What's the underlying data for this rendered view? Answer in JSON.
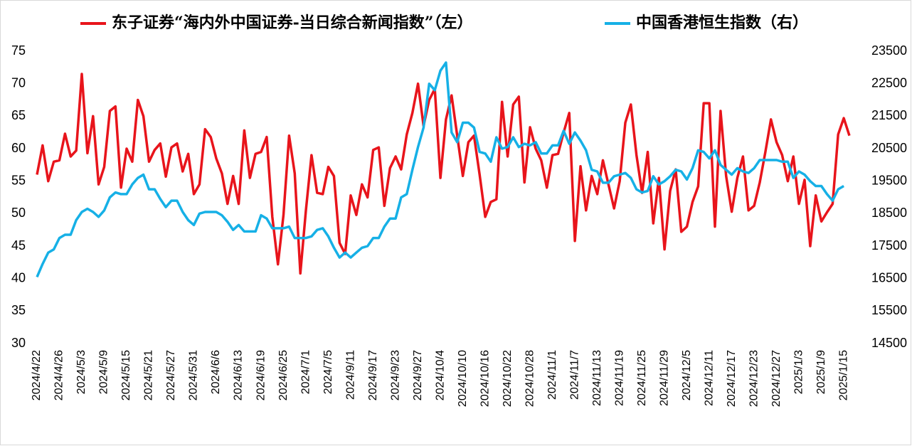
{
  "chart_data": {
    "type": "line",
    "legend": "top",
    "grid": false,
    "categories": [
      "2024/4/22",
      null,
      null,
      null,
      "2024/4/26",
      null,
      null,
      null,
      "2024/5/3",
      null,
      null,
      null,
      "2024/5/9",
      null,
      null,
      null,
      "2024/5/15",
      null,
      null,
      null,
      "2024/5/21",
      null,
      null,
      null,
      "2024/5/27",
      null,
      null,
      null,
      "2024/5/31",
      null,
      null,
      null,
      "2024/6/6",
      null,
      null,
      null,
      "2024/6/13",
      null,
      null,
      null,
      "2024/6/19",
      null,
      null,
      null,
      "2024/6/25",
      null,
      null,
      null,
      "2024/7/1",
      null,
      null,
      null,
      "2024/7/5",
      null,
      null,
      null,
      "2024/9/11",
      null,
      null,
      null,
      "2024/9/17",
      null,
      null,
      null,
      "2024/9/23",
      null,
      null,
      null,
      "2024/9/27",
      null,
      null,
      null,
      "2024/10/4",
      null,
      null,
      null,
      "2024/10/10",
      null,
      null,
      null,
      "2024/10/16",
      null,
      null,
      null,
      "2024/10/22",
      null,
      null,
      null,
      "2024/10/28",
      null,
      null,
      null,
      "2024/11/1",
      null,
      null,
      null,
      "2024/11/7",
      null,
      null,
      null,
      "2024/11/13",
      null,
      null,
      null,
      "2024/11/19",
      null,
      null,
      null,
      "2024/11/25",
      null,
      null,
      null,
      "2024/11/29",
      null,
      null,
      null,
      "2024/12/5",
      null,
      null,
      null,
      "2024/12/11",
      null,
      null,
      null,
      "2024/12/17",
      null,
      null,
      null,
      "2024/12/23",
      null,
      null,
      null,
      "2024/12/27",
      null,
      null,
      null,
      "2025/1/3",
      null,
      null,
      null,
      "2025/1/9",
      null,
      null,
      null,
      "2025/1/15",
      null
    ],
    "ylim": [
      30,
      75
    ],
    "yticks": [
      30,
      35,
      40,
      45,
      50,
      55,
      60,
      65,
      70,
      75
    ],
    "y2lim": [
      14500,
      23500
    ],
    "y2ticks": [
      14500,
      15500,
      16500,
      17500,
      18500,
      19500,
      20500,
      21500,
      22500,
      23500
    ],
    "series": [
      {
        "name": "东子证券“海内外中国证券-当日综合新闻指数”（左）",
        "color": "#e8141b",
        "axis": "y",
        "values": [
          56,
          60.5,
          55,
          58,
          58.2,
          62.3,
          58.8,
          59.7,
          71.5,
          59.3,
          65,
          54.5,
          57.2,
          65.8,
          66.5,
          54,
          60,
          58,
          67.5,
          65,
          58,
          59.8,
          60.8,
          55.7,
          60.2,
          60.8,
          56.5,
          59.2,
          53,
          54.5,
          63,
          61.8,
          58.5,
          56.2,
          51.5,
          55.8,
          51.5,
          62.8,
          55.5,
          59.2,
          59.5,
          61.8,
          49.5,
          42.2,
          49.8,
          62,
          56.2,
          40.8,
          50.5,
          59,
          53.2,
          53,
          57.2,
          55.8,
          45.5,
          43.8,
          52.8,
          49.8,
          54.5,
          52.5,
          59.8,
          60.2,
          51.2,
          57,
          58.8,
          56.8,
          62.2,
          65.5,
          70,
          63.5,
          67.5,
          69.2,
          55.5,
          64.5,
          68.2,
          62,
          55.8,
          61,
          62,
          56,
          49.5,
          51.8,
          52.2,
          67.2,
          58.8,
          66.8,
          68,
          54.8,
          63.3,
          60,
          58.2,
          54,
          59,
          59.2,
          62.5,
          65.5,
          45.8,
          57.3,
          50.5,
          55.8,
          53,
          58.2,
          54.5,
          50.8,
          55,
          64,
          66.8,
          59,
          53.2,
          59.5,
          48.5,
          55.5,
          44.5,
          53.5,
          56.8,
          47.2,
          48,
          51.8,
          54.2,
          67,
          67,
          48,
          65.8,
          55.8,
          50.3,
          55.5,
          58.8,
          50.5,
          51.2,
          54.8,
          59.5,
          64.5,
          61,
          59,
          55,
          58.8,
          51.5,
          55.2,
          45,
          52.8,
          48.8,
          50.2,
          51.5,
          62.2,
          64.7,
          62
        ]
      },
      {
        "name": "中国香港恒生指数（右）",
        "color": "#16b0e6",
        "axis": "y2",
        "values": [
          16550,
          16950,
          17300,
          17400,
          17750,
          17850,
          17850,
          18300,
          18550,
          18650,
          18550,
          18400,
          18600,
          19000,
          19150,
          19100,
          19100,
          19400,
          19600,
          19700,
          19250,
          19250,
          18950,
          18700,
          18900,
          18900,
          18550,
          18300,
          18150,
          18500,
          18550,
          18550,
          18550,
          18450,
          18250,
          18000,
          18150,
          17950,
          17950,
          17950,
          18450,
          18350,
          18050,
          18050,
          18050,
          18100,
          17750,
          17750,
          17750,
          17800,
          18000,
          18050,
          17800,
          17450,
          17150,
          17300,
          17150,
          17300,
          17450,
          17500,
          17750,
          17750,
          18100,
          18350,
          18350,
          19000,
          19100,
          19850,
          20550,
          21150,
          22500,
          22300,
          22900,
          23150,
          21000,
          20700,
          21300,
          21300,
          21150,
          20400,
          20350,
          20100,
          20850,
          20500,
          20550,
          20850,
          20550,
          20650,
          20600,
          20700,
          20350,
          20350,
          20600,
          20600,
          21050,
          20650,
          21000,
          20750,
          20450,
          19850,
          19800,
          19450,
          19450,
          19650,
          19700,
          19750,
          19600,
          19250,
          19150,
          19200,
          19650,
          19400,
          19500,
          19650,
          19850,
          19800,
          19550,
          19900,
          20450,
          20400,
          20200,
          20450,
          20000,
          19850,
          19700,
          19900,
          19800,
          19750,
          19900,
          20150,
          20150,
          20150,
          20150,
          20100,
          20100,
          19600,
          19800,
          19700,
          19500,
          19350,
          19350,
          19100,
          18900,
          19250,
          19350,
          null
        ]
      }
    ]
  }
}
